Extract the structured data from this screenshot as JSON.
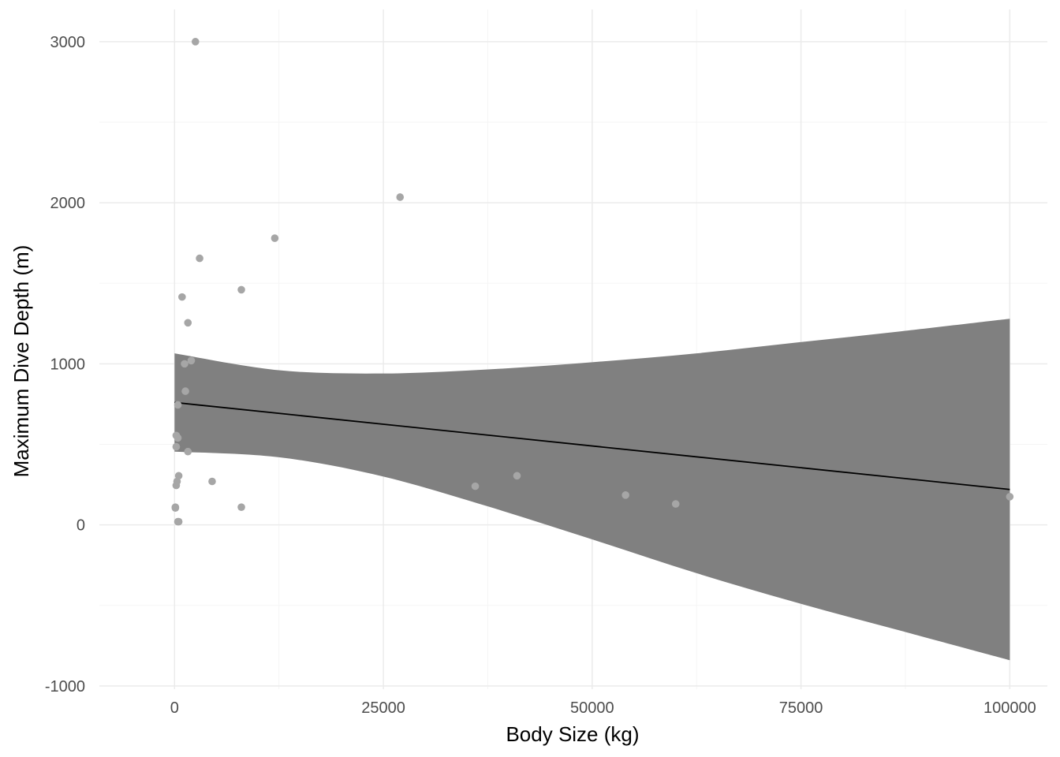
{
  "chart_data": {
    "type": "scatter",
    "title": "",
    "xlabel": "Body Size (kg)",
    "ylabel": "Maximum Dive Depth (m)",
    "xlim": [
      -9000,
      104500
    ],
    "ylim": [
      -1020,
      3200
    ],
    "x_ticks": [
      0,
      25000,
      50000,
      75000,
      100000
    ],
    "x_tick_labels": [
      "0",
      "25000",
      "50000",
      "75000",
      "100000"
    ],
    "x_minor_ticks": [
      12500,
      37500,
      62500,
      87500
    ],
    "y_ticks": [
      -1000,
      0,
      1000,
      2000,
      3000
    ],
    "y_tick_labels": [
      "-1000",
      "0",
      "1000",
      "2000",
      "3000"
    ],
    "y_minor_ticks": [
      -500,
      500,
      1500,
      2500
    ],
    "grid": true,
    "legend": "none",
    "colors": {
      "points": "#a6a6a6",
      "ribbon": "#808080",
      "line": "#000000",
      "grid_major": "#ebebeb",
      "grid_minor": "#f5f5f5"
    },
    "points": {
      "x": [
        2500,
        27000,
        12000,
        3000,
        8000,
        900,
        1600,
        1200,
        2000,
        1300,
        400,
        200,
        400,
        200,
        1600,
        500,
        300,
        200,
        4500,
        36000,
        41000,
        100,
        100,
        8000,
        54000,
        60000,
        100000,
        400,
        500
      ],
      "y": [
        3000,
        2035,
        1780,
        1655,
        1460,
        1415,
        1255,
        1000,
        1020,
        830,
        745,
        555,
        540,
        485,
        455,
        305,
        270,
        245,
        270,
        240,
        305,
        110,
        105,
        110,
        185,
        130,
        175,
        20,
        20
      ]
    },
    "fit_line": {
      "x": [
        0,
        100000
      ],
      "y": [
        760,
        220
      ]
    },
    "confidence_band": {
      "x": [
        0,
        12500,
        25000,
        37500,
        50000,
        62500,
        75000,
        87500,
        100000
      ],
      "upper": [
        1065,
        960,
        940,
        965,
        1010,
        1065,
        1135,
        1205,
        1280
      ],
      "lower": [
        455,
        420,
        300,
        115,
        -90,
        -300,
        -490,
        -665,
        -840
      ]
    }
  }
}
